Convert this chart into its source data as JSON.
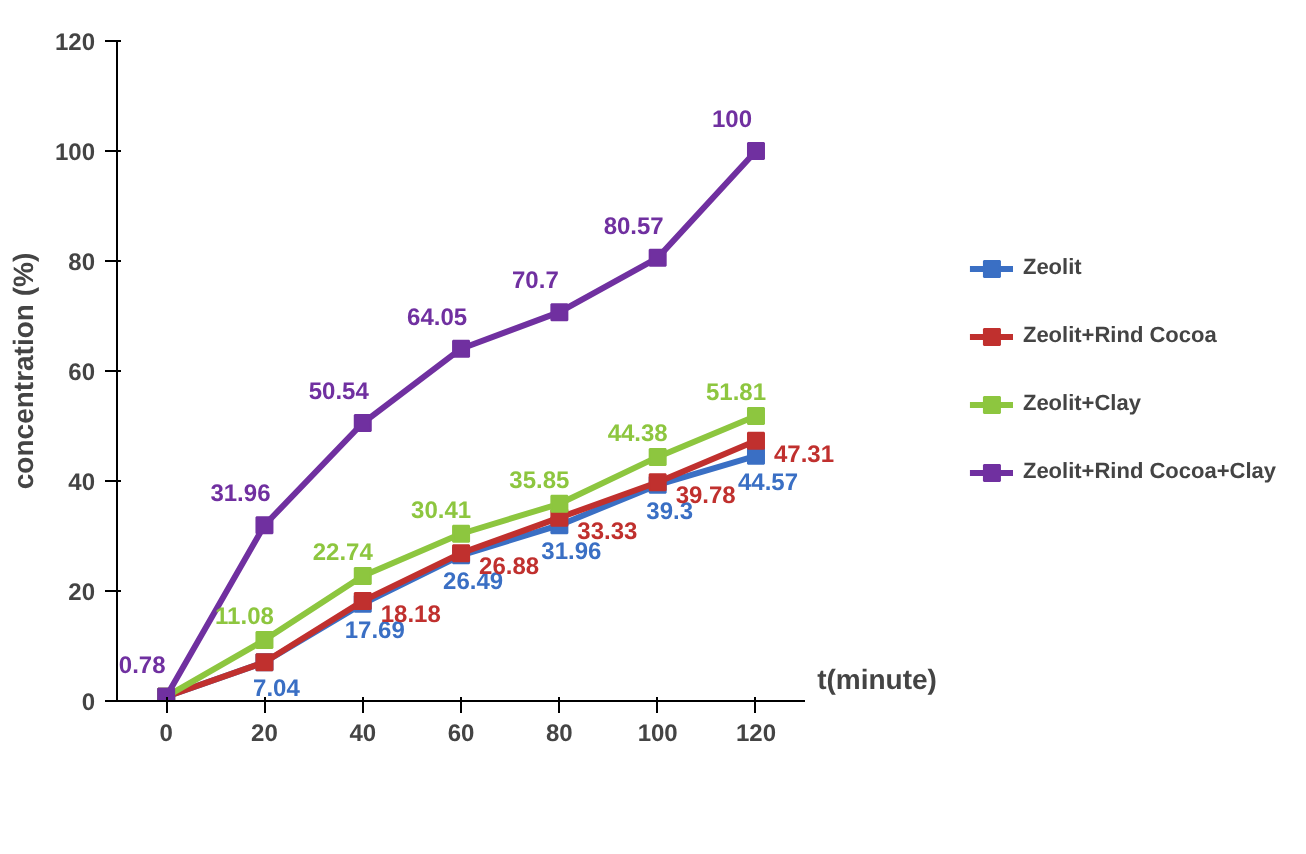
{
  "chart_data": {
    "type": "line",
    "ylabel": "concentration (%)",
    "xlabel": "t(minute)",
    "categories": [
      "0",
      "20",
      "40",
      "60",
      "80",
      "100",
      "120"
    ],
    "ylim": [
      0,
      120
    ],
    "yticks": [
      0,
      20,
      40,
      60,
      80,
      100,
      120
    ],
    "grid": false,
    "legend": "right",
    "marker": "square",
    "line_style": "solid",
    "series": [
      {
        "name": "Zeolit",
        "color": "#3a6fc4",
        "values": [
          0.78,
          7.04,
          17.69,
          26.49,
          31.96,
          39.3,
          44.57
        ],
        "value_labels": [
          null,
          "7.04",
          "17.69",
          "26.49",
          "31.96",
          "39.3",
          "44.57"
        ]
      },
      {
        "name": "Zeolit+Rind Cocoa",
        "color": "#c0302e",
        "values": [
          0.78,
          7.04,
          18.18,
          26.88,
          33.33,
          39.78,
          47.31
        ],
        "value_labels": [
          null,
          null,
          "18.18",
          "26.88",
          "33.33",
          "39.78",
          "47.31"
        ]
      },
      {
        "name": "Zeolit+Clay",
        "color": "#8dc63f",
        "values": [
          0.78,
          11.08,
          22.74,
          30.41,
          35.85,
          44.38,
          51.81
        ],
        "value_labels": [
          null,
          "11.08",
          "22.74",
          "30.41",
          "35.85",
          "44.38",
          "51.81"
        ]
      },
      {
        "name": "Zeolit+Rind Cocoa+Clay",
        "color": "#7030a0",
        "values": [
          0.78,
          31.96,
          50.54,
          64.05,
          70.7,
          80.57,
          100
        ],
        "value_labels": [
          "0.78",
          "31.96",
          "50.54",
          "64.05",
          "70.7",
          "80.57",
          "100"
        ]
      }
    ]
  }
}
